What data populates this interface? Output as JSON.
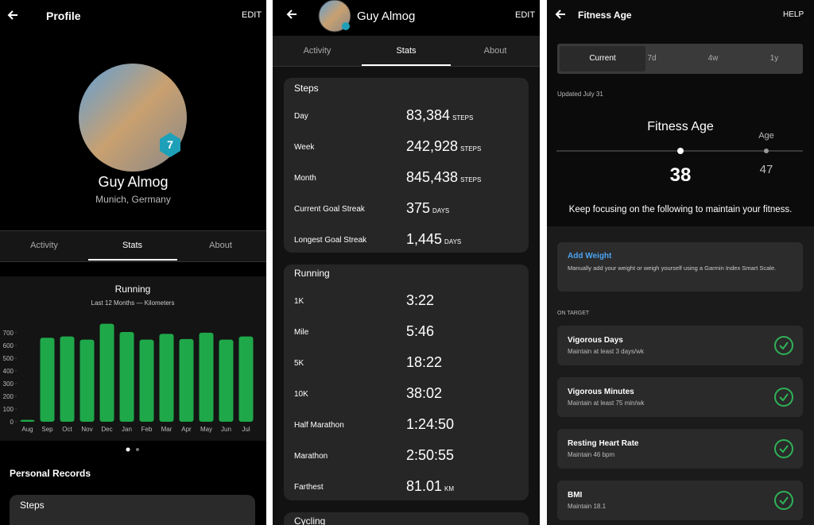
{
  "chart_data": {
    "type": "bar",
    "title": "Running",
    "subtitle": "Last 12 Months — Kilometers",
    "categories": [
      "Aug",
      "Sep",
      "Oct",
      "Nov",
      "Dec",
      "Jan",
      "Feb",
      "Mar",
      "Apr",
      "May",
      "Jun",
      "Jul"
    ],
    "values": [
      15,
      660,
      670,
      645,
      770,
      705,
      645,
      690,
      650,
      700,
      645,
      670
    ],
    "color": "#1fa84a",
    "ylim": [
      0,
      780
    ],
    "yticks": [
      0,
      100,
      200,
      300,
      400,
      500,
      600,
      700
    ]
  },
  "profile": {
    "header": {
      "title": "Profile",
      "action": "EDIT"
    },
    "level": "7",
    "name": "Guy Almog",
    "location": "Munich, Germany",
    "tabs": [
      "Activity",
      "Stats",
      "About"
    ],
    "section": "Personal Records",
    "card": "Steps"
  },
  "stats": {
    "header": {
      "title": "Guy Almog",
      "action": "EDIT"
    },
    "tabs": [
      "Activity",
      "Stats",
      "About"
    ],
    "steps": {
      "title": "Steps",
      "rows": [
        {
          "label": "Day",
          "value": "83,384",
          "unit": "STEPS"
        },
        {
          "label": "Week",
          "value": "242,928",
          "unit": "STEPS"
        },
        {
          "label": "Month",
          "value": "845,438",
          "unit": "STEPS"
        },
        {
          "label": "Current Goal Streak",
          "value": "375",
          "unit": "DAYS"
        },
        {
          "label": "Longest Goal Streak",
          "value": "1,445",
          "unit": "DAYS"
        }
      ]
    },
    "running": {
      "title": "Running",
      "rows": [
        {
          "label": "1K",
          "value": "3:22"
        },
        {
          "label": "Mile",
          "value": "5:46"
        },
        {
          "label": "5K",
          "value": "18:22"
        },
        {
          "label": "10K",
          "value": "38:02"
        },
        {
          "label": "Half Marathon",
          "value": "1:24:50"
        },
        {
          "label": "Marathon",
          "value": "2:50:55"
        },
        {
          "label": "Farthest",
          "value": "81.01",
          "unit": "KM"
        }
      ]
    },
    "next": "Cycling"
  },
  "fitness": {
    "header": {
      "title": "Fitness Age",
      "action": "HELP"
    },
    "periods": [
      "Current",
      "7d",
      "4w",
      "1y"
    ],
    "updated": "Updated July 31",
    "heading": "Fitness Age",
    "age_label": "Age",
    "fitness_age": "38",
    "age": "47",
    "message": "Keep focusing on the following to maintain your fitness.",
    "add_weight": {
      "title": "Add Weight",
      "text": "Manually add your weight or weigh yourself using a Garmin Index Smart Scale."
    },
    "section": "ON TARGET",
    "items": [
      {
        "title": "Vigorous Days",
        "text": "Maintain at least 3 days/wk"
      },
      {
        "title": "Vigorous Minutes",
        "text": "Maintain at least 75 min/wk"
      },
      {
        "title": "Resting Heart Rate",
        "text": "Maintain 46 bpm"
      },
      {
        "title": "BMI",
        "text": "Maintain 18.1"
      }
    ]
  }
}
